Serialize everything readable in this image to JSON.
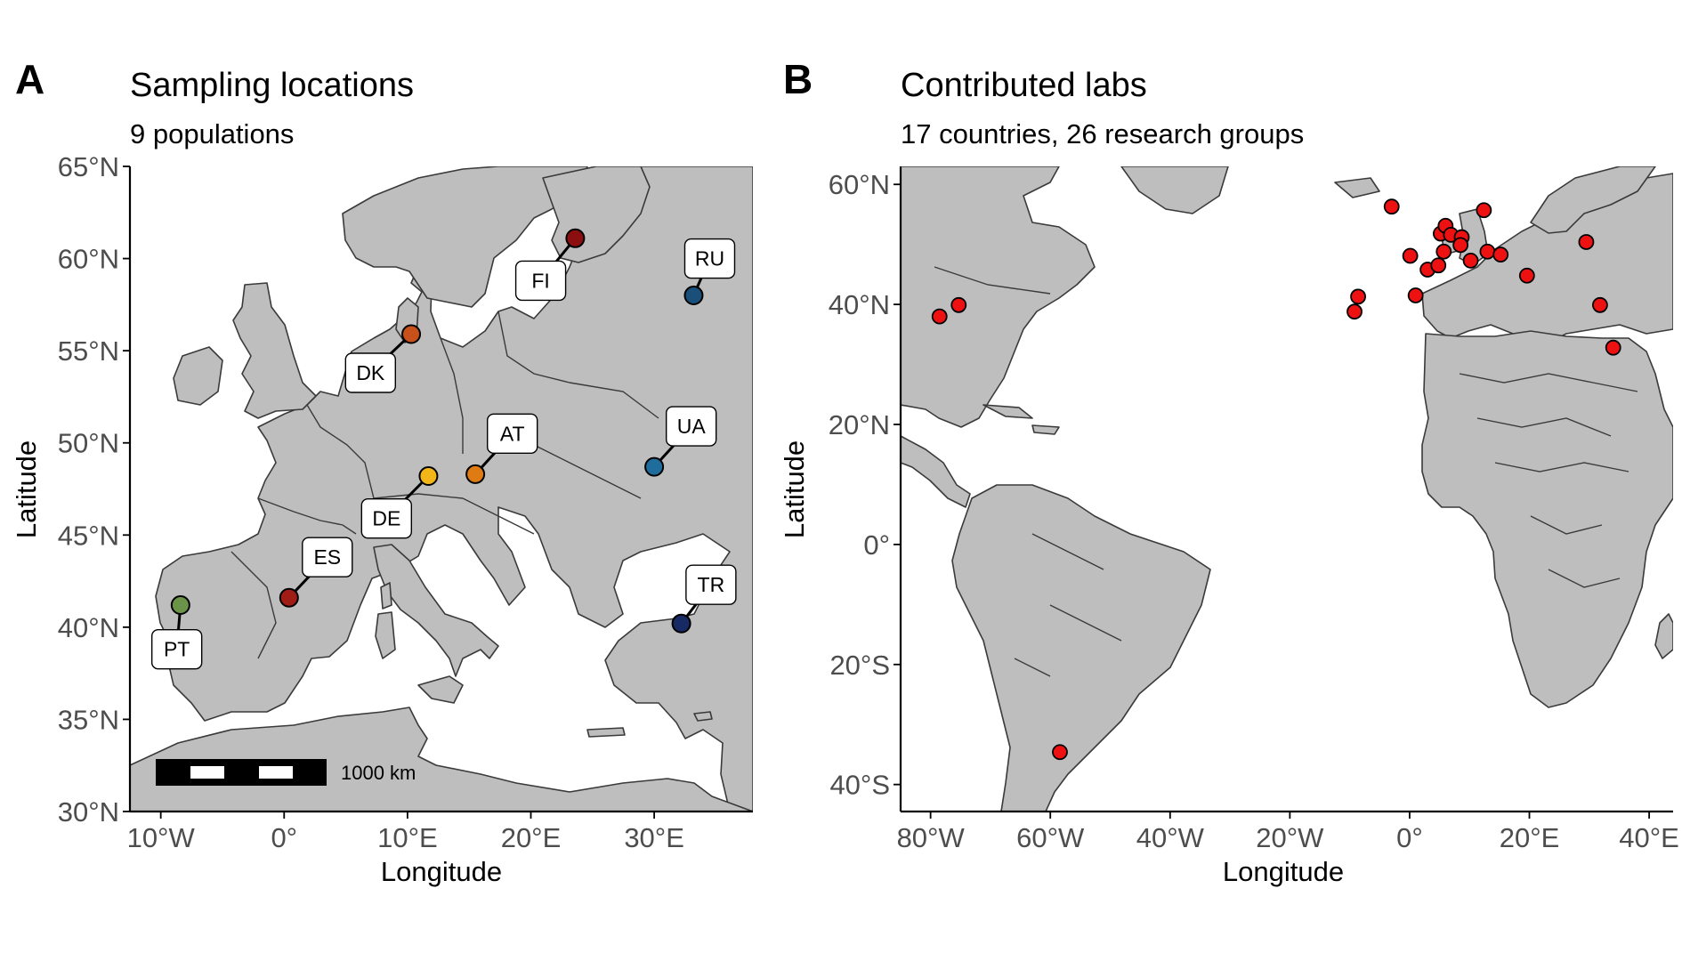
{
  "panel_a": {
    "letter": "A",
    "title": "Sampling locations",
    "subtitle": "9 populations",
    "xlabel": "Longitude",
    "ylabel": "Latitude",
    "x_ticks": [
      {
        "value": -10,
        "label": "10°W"
      },
      {
        "value": 0,
        "label": "0°"
      },
      {
        "value": 10,
        "label": "10°E"
      },
      {
        "value": 20,
        "label": "20°E"
      },
      {
        "value": 30,
        "label": "30°E"
      }
    ],
    "y_ticks": [
      {
        "value": 30,
        "label": "30°N"
      },
      {
        "value": 35,
        "label": "35°N"
      },
      {
        "value": 40,
        "label": "40°N"
      },
      {
        "value": 45,
        "label": "45°N"
      },
      {
        "value": 50,
        "label": "50°N"
      },
      {
        "value": 55,
        "label": "55°N"
      },
      {
        "value": 60,
        "label": "60°N"
      },
      {
        "value": 65,
        "label": "65°N"
      }
    ],
    "xlim": [
      -12.5,
      38
    ],
    "ylim": [
      30,
      65
    ],
    "scale_bar_label": "1000 km",
    "populations": [
      {
        "code": "FI",
        "lon": 23.6,
        "lat": 61.1,
        "color": "#8b0f0f",
        "label_lon": 20.8,
        "label_lat": 58.8
      },
      {
        "code": "RU",
        "lon": 33.2,
        "lat": 58.0,
        "color": "#1a4f7a",
        "label_lon": 34.5,
        "label_lat": 60.0
      },
      {
        "code": "DK",
        "lon": 10.3,
        "lat": 55.9,
        "color": "#c8501a",
        "label_lon": 7.0,
        "label_lat": 53.8
      },
      {
        "code": "AT",
        "lon": 15.5,
        "lat": 48.3,
        "color": "#e07b13",
        "label_lon": 18.5,
        "label_lat": 50.5
      },
      {
        "code": "UA",
        "lon": 30.0,
        "lat": 48.7,
        "color": "#1f6d9c",
        "label_lon": 33.0,
        "label_lat": 50.9
      },
      {
        "code": "DE",
        "lon": 11.7,
        "lat": 48.2,
        "color": "#f2b619",
        "label_lon": 8.3,
        "label_lat": 45.9
      },
      {
        "code": "ES",
        "lon": 0.4,
        "lat": 41.6,
        "color": "#a01d15",
        "label_lon": 3.5,
        "label_lat": 43.8
      },
      {
        "code": "PT",
        "lon": -8.4,
        "lat": 41.2,
        "color": "#6b9449",
        "label_lon": -8.7,
        "label_lat": 38.8
      },
      {
        "code": "TR",
        "lon": 32.2,
        "lat": 40.2,
        "color": "#172a63",
        "label_lon": 34.6,
        "label_lat": 42.3
      }
    ]
  },
  "panel_b": {
    "letter": "B",
    "title": "Contributed labs",
    "subtitle": "17 countries, 26 research groups",
    "xlabel": "Longitude",
    "ylabel": "Latitude",
    "x_ticks": [
      {
        "value": -80,
        "label": "80°W"
      },
      {
        "value": -60,
        "label": "60°W"
      },
      {
        "value": -40,
        "label": "40°W"
      },
      {
        "value": -20,
        "label": "20°W"
      },
      {
        "value": 0,
        "label": "0°"
      },
      {
        "value": 20,
        "label": "20°E"
      },
      {
        "value": 40,
        "label": "40°E"
      }
    ],
    "y_ticks": [
      {
        "value": -40,
        "label": "40°S"
      },
      {
        "value": -20,
        "label": "20°S"
      },
      {
        "value": 0,
        "label": "0°"
      },
      {
        "value": 20,
        "label": "20°N"
      },
      {
        "value": 40,
        "label": "40°N"
      },
      {
        "value": 60,
        "label": "60°N"
      }
    ],
    "xlim": [
      -85,
      44
    ],
    "ylim": [
      -44.5,
      63
    ],
    "point_color": "#ee1111",
    "labs": [
      {
        "lon": -78.5,
        "lat": 38.0
      },
      {
        "lon": -75.3,
        "lat": 39.9
      },
      {
        "lon": -58.4,
        "lat": -34.6
      },
      {
        "lon": -9.2,
        "lat": 38.8
      },
      {
        "lon": -8.6,
        "lat": 41.3
      },
      {
        "lon": 1.0,
        "lat": 41.5
      },
      {
        "lon": -3.0,
        "lat": 56.3
      },
      {
        "lon": 0.1,
        "lat": 48.1
      },
      {
        "lon": 3.0,
        "lat": 45.8
      },
      {
        "lon": 5.2,
        "lat": 51.8
      },
      {
        "lon": 6.0,
        "lat": 53.1
      },
      {
        "lon": 6.9,
        "lat": 51.6
      },
      {
        "lon": 8.7,
        "lat": 51.2
      },
      {
        "lon": 8.5,
        "lat": 49.9
      },
      {
        "lon": 5.7,
        "lat": 48.8
      },
      {
        "lon": 4.8,
        "lat": 46.5
      },
      {
        "lon": 12.4,
        "lat": 55.7
      },
      {
        "lon": 10.2,
        "lat": 47.3
      },
      {
        "lon": 13.0,
        "lat": 48.8
      },
      {
        "lon": 15.2,
        "lat": 48.3
      },
      {
        "lon": 19.6,
        "lat": 44.8
      },
      {
        "lon": 29.5,
        "lat": 50.4
      },
      {
        "lon": 31.8,
        "lat": 39.9
      },
      {
        "lon": 34.0,
        "lat": 32.8
      }
    ]
  }
}
